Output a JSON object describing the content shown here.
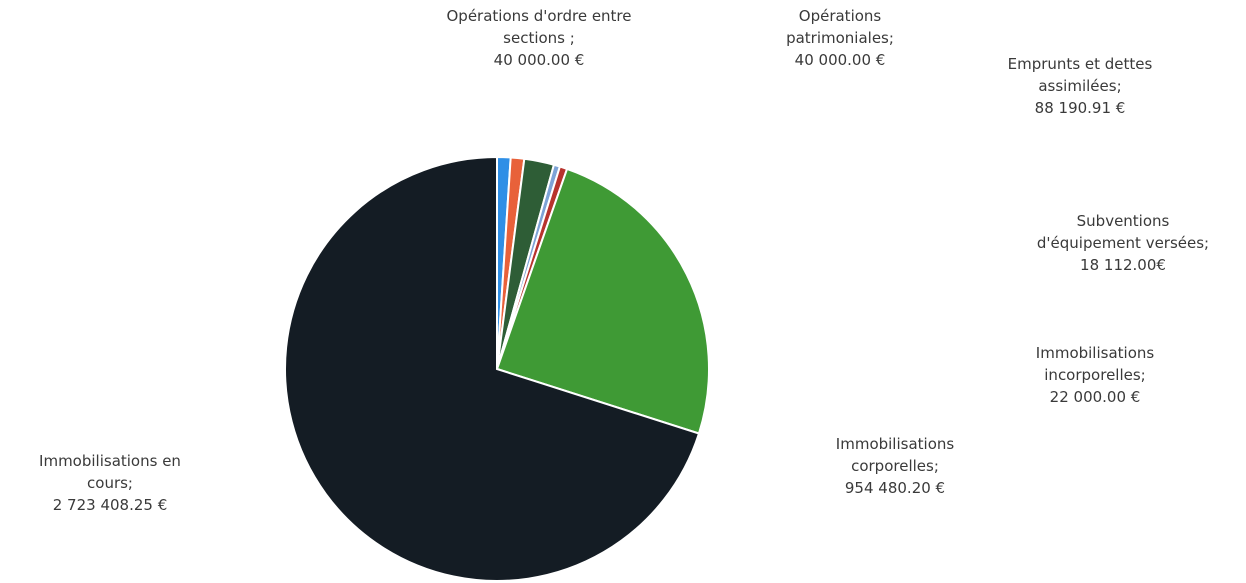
{
  "chart_data": {
    "type": "pie",
    "title": "",
    "slices": [
      {
        "key": "ordre",
        "label_lines": [
          "Opérations d'ordre entre",
          "sections ;",
          "40 000.00 €"
        ],
        "value": 40000.0,
        "color": "#2f8fe6"
      },
      {
        "key": "patrimoniales",
        "label_lines": [
          "Opérations",
          "patrimoniales;",
          "40 000.00 €"
        ],
        "value": 40000.0,
        "color": "#e8613a"
      },
      {
        "key": "emprunts",
        "label_lines": [
          "Emprunts et dettes",
          "assimilées;",
          "88 190.91 €"
        ],
        "value": 88190.91,
        "color": "#2e5d36"
      },
      {
        "key": "subventions",
        "label_lines": [
          "Subventions",
          "d'équipement versées;",
          "18 112.00€"
        ],
        "value": 18112.0,
        "color": "#7ea3d6"
      },
      {
        "key": "incorporelles",
        "label_lines": [
          "Immobilisations",
          "incorporelles;",
          "22 000.00 €"
        ],
        "value": 22000.0,
        "color": "#b7332d"
      },
      {
        "key": "corporelles",
        "label_lines": [
          "Immobilisations",
          "corporelles;",
          "954 480.20 €"
        ],
        "value": 954480.2,
        "color": "#3f9a35"
      },
      {
        "key": "encours",
        "label_lines": [
          "Immobilisations en",
          "cours;",
          "2 723 408.25 €"
        ],
        "value": 2723408.25,
        "color": "#141c24"
      }
    ]
  }
}
